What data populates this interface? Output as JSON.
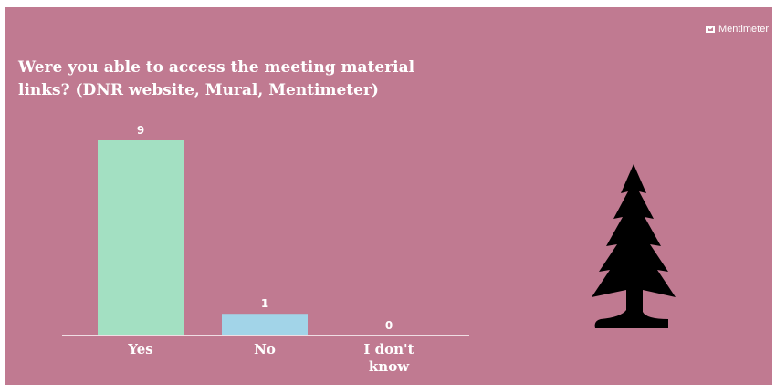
{
  "brand": {
    "name": "Mentimeter",
    "icon": "mentimeter-logo-icon"
  },
  "question": "Were you able to access the meeting material links? (DNR website, Mural, Mentimeter)",
  "colors": {
    "background": "#c07a91",
    "bars": [
      "#a3e0c2",
      "#a2d4e8",
      "#f3b2c4"
    ],
    "axis": "#ffffff",
    "text": "#ffffff"
  },
  "decoration": {
    "icon": "pine-tree-icon"
  },
  "chart_data": {
    "type": "bar",
    "title": "Were you able to access the meeting material links? (DNR website, Mural, Mentimeter)",
    "categories": [
      "Yes",
      "No",
      "I don't know"
    ],
    "category_lines": [
      [
        "Yes"
      ],
      [
        "No"
      ],
      [
        "I don't",
        "know"
      ]
    ],
    "values": [
      9,
      1,
      0
    ],
    "value_labels": [
      "9",
      "1",
      "0"
    ],
    "ylim": [
      0,
      9
    ],
    "grid": false,
    "legend": "none"
  }
}
